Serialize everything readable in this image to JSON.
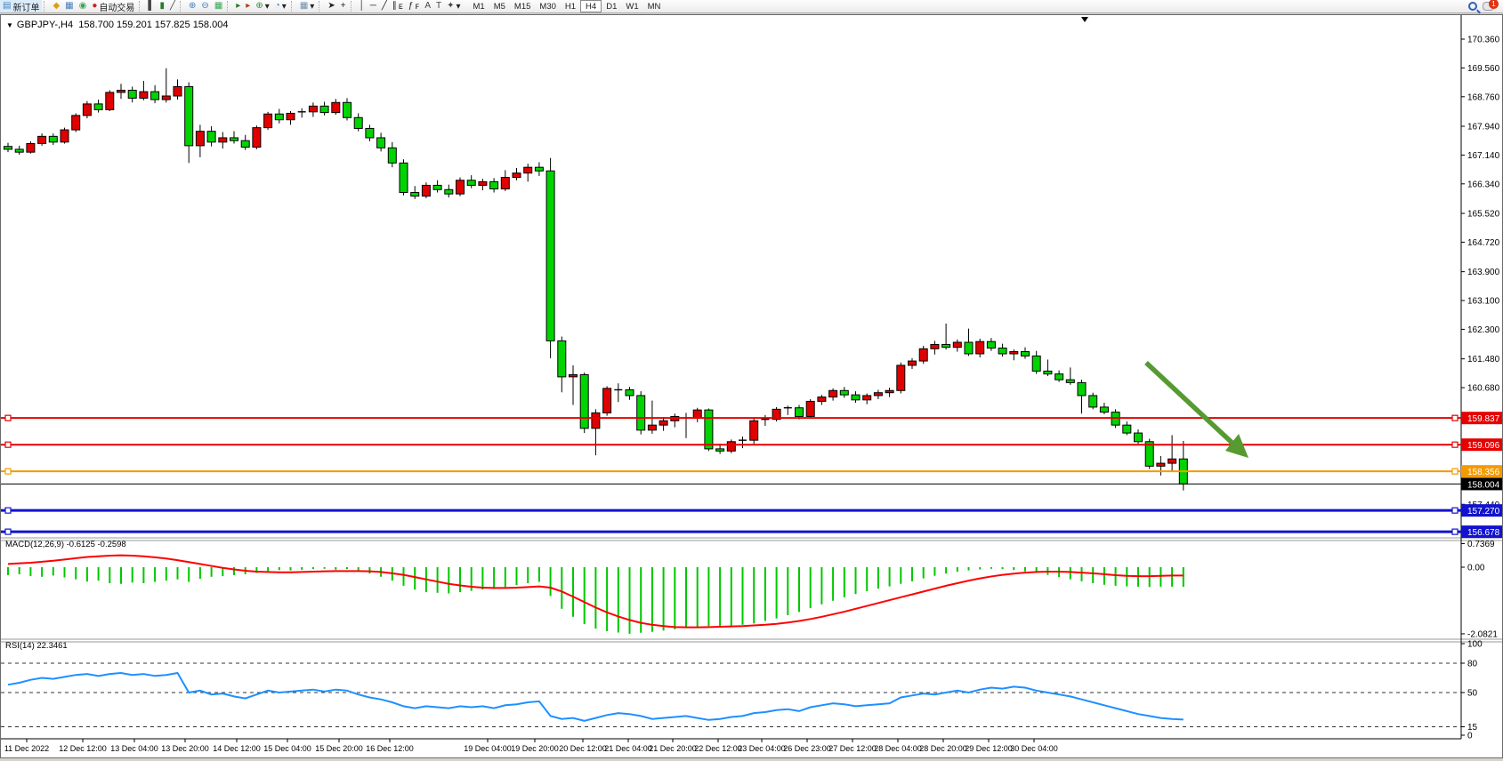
{
  "toolbar": {
    "buttons": [
      {
        "name": "new-order-button",
        "glyph": "▤",
        "color": "#3f7fbf",
        "label": "新订单"
      },
      {
        "name": "separator",
        "glyph": "",
        "color": "",
        "label": ""
      },
      {
        "name": "gold-chart-button",
        "glyph": "◆",
        "color": "#d8a018",
        "label": ""
      },
      {
        "name": "market-window-button",
        "glyph": "▦",
        "color": "#4a7ebb",
        "label": ""
      },
      {
        "name": "signal-button",
        "glyph": "◉",
        "color": "#3aa655",
        "label": ""
      },
      {
        "name": "autotrading-button",
        "glyph": "●",
        "color": "#d42020",
        "label": "自动交易"
      },
      {
        "name": "separator",
        "glyph": "",
        "color": "",
        "label": ""
      },
      {
        "name": "bar-chart-button",
        "glyph": "▌",
        "color": "#444444",
        "label": ""
      },
      {
        "name": "candlestick-chart-button",
        "glyph": "▮",
        "color": "#2a7a2a",
        "label": ""
      },
      {
        "name": "line-chart-button",
        "glyph": "╱",
        "color": "#444444",
        "label": ""
      },
      {
        "name": "separator",
        "glyph": "",
        "color": "",
        "label": ""
      },
      {
        "name": "zoom-in-button",
        "glyph": "⊕",
        "color": "#3f7fbf",
        "label": ""
      },
      {
        "name": "zoom-out-button",
        "glyph": "⊖",
        "color": "#3f7fbf",
        "label": ""
      },
      {
        "name": "tile-windows-button",
        "glyph": "▦",
        "color": "#3aa655",
        "label": ""
      },
      {
        "name": "separator",
        "glyph": "",
        "color": "",
        "label": ""
      },
      {
        "name": "auto-scroll-button",
        "glyph": "▸",
        "color": "#2a7a2a",
        "label": ""
      },
      {
        "name": "chart-shift-button",
        "glyph": "▸",
        "color": "#b04020",
        "label": ""
      },
      {
        "name": "add-indicator-button",
        "glyph": "⊕",
        "color": "#2a9a2a",
        "label": "▾"
      },
      {
        "name": "period-button",
        "glyph": "◔",
        "color": "#3f7fbf",
        "label": "▾"
      },
      {
        "name": "separator",
        "glyph": "",
        "color": "",
        "label": ""
      },
      {
        "name": "template-button",
        "glyph": "▦",
        "color": "#6f8faf",
        "label": "▾"
      },
      {
        "name": "separator",
        "glyph": "",
        "color": "",
        "label": ""
      },
      {
        "name": "cursor-button",
        "glyph": "➤",
        "color": "#222222",
        "label": ""
      },
      {
        "name": "crosshair-button",
        "glyph": "+",
        "color": "#222222",
        "label": ""
      },
      {
        "name": "separator",
        "glyph": "",
        "color": "",
        "label": ""
      },
      {
        "name": "vertical-line-button",
        "glyph": "│",
        "color": "#222222",
        "label": ""
      },
      {
        "name": "horizontal-line-button",
        "glyph": "─",
        "color": "#222222",
        "label": ""
      },
      {
        "name": "trendline-button",
        "glyph": "╱",
        "color": "#222222",
        "label": ""
      },
      {
        "name": "channel-button",
        "glyph": "∥",
        "color": "#222222",
        "label": "ᴇ"
      },
      {
        "name": "fibonacci-button",
        "glyph": "ƒ",
        "color": "#222222",
        "label": "ꜰ"
      },
      {
        "name": "text-button",
        "glyph": "A",
        "color": "#444444",
        "label": ""
      },
      {
        "name": "text-label-button",
        "glyph": "T",
        "color": "#444444",
        "label": ""
      },
      {
        "name": "arrows-button",
        "glyph": "✦",
        "color": "#444444",
        "label": "▾"
      }
    ],
    "timeframes": [
      "M1",
      "M5",
      "M15",
      "M30",
      "H1",
      "H4",
      "D1",
      "W1",
      "MN"
    ],
    "active_timeframe": "H4",
    "notification_badge": "1"
  },
  "chart": {
    "collapse_icon": "▼",
    "title": "GBPJPY-,H4",
    "ohlc_text": "158.700 159.201 157.825 158.004"
  },
  "chart_data": {
    "type": "candlestick",
    "symbol": "GBPJPY-",
    "timeframe": "H4",
    "last_bar": {
      "open": 158.7,
      "high": 159.201,
      "low": 157.825,
      "close": 158.004
    },
    "price_axis_ticks": [
      "170.360",
      "169.560",
      "168.760",
      "167.940",
      "167.140",
      "166.340",
      "165.520",
      "164.720",
      "163.900",
      "163.100",
      "162.300",
      "161.480",
      "160.680",
      "157.440"
    ],
    "horizontal_lines": [
      {
        "price": 159.837,
        "label": "159.837",
        "color": "#e60000",
        "width": 2
      },
      {
        "price": 159.096,
        "label": "159.096",
        "color": "#e60000",
        "width": 2
      },
      {
        "price": 158.356,
        "label": "158.356",
        "color": "#f59a00",
        "width": 2
      },
      {
        "price": 157.27,
        "label": "157.270",
        "color": "#1212cf",
        "width": 3
      },
      {
        "price": 156.678,
        "label": "156.678",
        "color": "#1212cf",
        "width": 3
      }
    ],
    "current_price": {
      "price": 158.004,
      "label": "158.004",
      "color": "#000000"
    },
    "x_labels": [
      "11 Dec 2022",
      "12 Dec 12:00",
      "13 Dec 04:00",
      "13 Dec 20:00",
      "14 Dec 12:00",
      "15 Dec 04:00",
      "15 Dec 20:00",
      "16 Dec 12:00",
      "19 Dec 04:00",
      "19 Dec 20:00",
      "20 Dec 12:00",
      "21 Dec 04:00",
      "21 Dec 20:00",
      "22 Dec 12:00",
      "23 Dec 04:00",
      "26 Dec 23:00",
      "27 Dec 12:00",
      "28 Dec 04:00",
      "28 Dec 20:00",
      "29 Dec 12:00",
      "30 Dec 04:00"
    ],
    "candles": [
      [
        167.38,
        167.48,
        167.22,
        167.3
      ],
      [
        167.3,
        167.4,
        167.15,
        167.22
      ],
      [
        167.22,
        167.52,
        167.18,
        167.46
      ],
      [
        167.46,
        167.74,
        167.4,
        167.66
      ],
      [
        167.66,
        167.74,
        167.42,
        167.5
      ],
      [
        167.5,
        167.9,
        167.46,
        167.84
      ],
      [
        167.84,
        168.3,
        167.78,
        168.24
      ],
      [
        168.24,
        168.64,
        168.16,
        168.56
      ],
      [
        168.56,
        168.68,
        168.32,
        168.4
      ],
      [
        168.4,
        168.94,
        168.36,
        168.88
      ],
      [
        168.88,
        169.12,
        168.7,
        168.94
      ],
      [
        168.94,
        169.04,
        168.6,
        168.72
      ],
      [
        168.72,
        169.2,
        168.66,
        168.9
      ],
      [
        168.9,
        169.08,
        168.58,
        168.68
      ],
      [
        168.68,
        169.55,
        168.6,
        168.78
      ],
      [
        168.78,
        169.24,
        168.68,
        169.04
      ],
      [
        169.04,
        169.16,
        166.92,
        167.4
      ],
      [
        167.4,
        167.98,
        167.08,
        167.8
      ],
      [
        167.8,
        167.94,
        167.38,
        167.5
      ],
      [
        167.5,
        167.78,
        167.32,
        167.62
      ],
      [
        167.62,
        167.8,
        167.46,
        167.54
      ],
      [
        167.54,
        167.7,
        167.28,
        167.36
      ],
      [
        167.36,
        167.96,
        167.3,
        167.9
      ],
      [
        167.9,
        168.34,
        167.84,
        168.28
      ],
      [
        168.28,
        168.42,
        168.02,
        168.12
      ],
      [
        168.12,
        168.36,
        167.98,
        168.3
      ],
      [
        168.3,
        168.44,
        168.18,
        168.34
      ],
      [
        168.34,
        168.6,
        168.2,
        168.5
      ],
      [
        168.5,
        168.62,
        168.24,
        168.32
      ],
      [
        168.32,
        168.7,
        168.26,
        168.6
      ],
      [
        168.6,
        168.72,
        168.1,
        168.18
      ],
      [
        168.18,
        168.3,
        167.8,
        167.88
      ],
      [
        167.88,
        167.98,
        167.52,
        167.62
      ],
      [
        167.62,
        167.76,
        167.24,
        167.34
      ],
      [
        167.34,
        167.5,
        166.8,
        166.92
      ],
      [
        166.92,
        167.02,
        166.02,
        166.1
      ],
      [
        166.1,
        166.28,
        165.92,
        166.0
      ],
      [
        166.0,
        166.38,
        165.94,
        166.3
      ],
      [
        166.3,
        166.44,
        166.1,
        166.18
      ],
      [
        166.18,
        166.32,
        165.96,
        166.06
      ],
      [
        166.06,
        166.52,
        166.0,
        166.44
      ],
      [
        166.44,
        166.58,
        166.22,
        166.3
      ],
      [
        166.3,
        166.48,
        166.16,
        166.4
      ],
      [
        166.4,
        166.5,
        166.1,
        166.2
      ],
      [
        166.2,
        166.72,
        166.14,
        166.52
      ],
      [
        166.52,
        166.78,
        166.44,
        166.64
      ],
      [
        166.64,
        166.9,
        166.4,
        166.8
      ],
      [
        166.8,
        166.94,
        166.56,
        166.7
      ],
      [
        166.7,
        167.06,
        161.5,
        161.98
      ],
      [
        161.98,
        162.1,
        160.55,
        160.98
      ],
      [
        160.98,
        161.3,
        160.2,
        161.04
      ],
      [
        161.04,
        161.1,
        159.42,
        159.55
      ],
      [
        159.55,
        160.08,
        158.8,
        159.98
      ],
      [
        159.98,
        160.72,
        159.9,
        160.66
      ],
      [
        160.66,
        160.8,
        160.28,
        160.62
      ],
      [
        160.62,
        160.7,
        160.34,
        160.46
      ],
      [
        160.46,
        160.58,
        159.38,
        159.5
      ],
      [
        159.5,
        160.32,
        159.4,
        159.64
      ],
      [
        159.64,
        159.86,
        159.48,
        159.76
      ],
      [
        159.76,
        159.96,
        159.58,
        159.88
      ],
      [
        159.88,
        159.98,
        159.28,
        159.84
      ],
      [
        159.84,
        160.12,
        159.72,
        160.06
      ],
      [
        160.06,
        160.1,
        158.92,
        158.98
      ],
      [
        158.98,
        159.12,
        158.84,
        158.92
      ],
      [
        158.92,
        159.24,
        158.86,
        159.18
      ],
      [
        159.18,
        159.32,
        159.0,
        159.22
      ],
      [
        159.22,
        159.82,
        159.12,
        159.76
      ],
      [
        159.76,
        159.92,
        159.62,
        159.8
      ],
      [
        159.8,
        160.14,
        159.74,
        160.08
      ],
      [
        160.08,
        160.18,
        159.92,
        160.12
      ],
      [
        160.12,
        160.2,
        159.8,
        159.88
      ],
      [
        159.88,
        160.36,
        159.82,
        160.3
      ],
      [
        160.3,
        160.48,
        160.2,
        160.42
      ],
      [
        160.42,
        160.66,
        160.32,
        160.6
      ],
      [
        160.6,
        160.7,
        160.4,
        160.48
      ],
      [
        160.48,
        160.58,
        160.26,
        160.34
      ],
      [
        160.34,
        160.52,
        160.22,
        160.46
      ],
      [
        160.46,
        160.62,
        160.36,
        160.54
      ],
      [
        160.54,
        160.68,
        160.42,
        160.6
      ],
      [
        160.6,
        161.38,
        160.52,
        161.3
      ],
      [
        161.3,
        161.5,
        161.2,
        161.42
      ],
      [
        161.42,
        161.84,
        161.34,
        161.76
      ],
      [
        161.76,
        161.98,
        161.6,
        161.88
      ],
      [
        161.88,
        162.46,
        161.74,
        161.8
      ],
      [
        161.8,
        162.02,
        161.68,
        161.94
      ],
      [
        161.94,
        162.32,
        161.56,
        161.62
      ],
      [
        161.62,
        162.04,
        161.52,
        161.96
      ],
      [
        161.96,
        162.06,
        161.7,
        161.78
      ],
      [
        161.78,
        161.9,
        161.54,
        161.62
      ],
      [
        161.62,
        161.74,
        161.44,
        161.68
      ],
      [
        161.68,
        161.8,
        161.48,
        161.56
      ],
      [
        161.56,
        161.7,
        161.06,
        161.14
      ],
      [
        161.14,
        161.46,
        161.0,
        161.06
      ],
      [
        161.06,
        161.16,
        160.84,
        160.9
      ],
      [
        160.9,
        161.24,
        160.76,
        160.82
      ],
      [
        160.82,
        160.9,
        159.96,
        160.46
      ],
      [
        160.46,
        160.54,
        160.08,
        160.14
      ],
      [
        160.14,
        160.26,
        159.94,
        160.0
      ],
      [
        160.0,
        160.08,
        159.56,
        159.64
      ],
      [
        159.64,
        159.74,
        159.36,
        159.42
      ],
      [
        159.42,
        159.52,
        159.12,
        159.18
      ],
      [
        159.18,
        159.26,
        158.42,
        158.5
      ],
      [
        158.5,
        158.78,
        158.24,
        158.58
      ],
      [
        158.58,
        159.36,
        158.34,
        158.7
      ],
      [
        158.7,
        159.201,
        157.825,
        158.004
      ]
    ],
    "macd": {
      "label": "MACD(12,26,9) -0.6125 -0.2598",
      "params": "12,26,9",
      "value_main": -0.6125,
      "value_signal": -0.2598,
      "scale_labels": [
        "0.7369",
        "0.00",
        "-2.0821"
      ],
      "histogram": [
        -0.25,
        -0.22,
        -0.28,
        -0.3,
        -0.26,
        -0.32,
        -0.38,
        -0.45,
        -0.42,
        -0.5,
        -0.52,
        -0.48,
        -0.5,
        -0.46,
        -0.42,
        -0.38,
        -0.46,
        -0.36,
        -0.3,
        -0.28,
        -0.25,
        -0.22,
        -0.18,
        -0.12,
        -0.09,
        -0.1,
        -0.08,
        -0.06,
        -0.05,
        -0.08,
        -0.06,
        -0.12,
        -0.2,
        -0.3,
        -0.42,
        -0.58,
        -0.7,
        -0.78,
        -0.8,
        -0.82,
        -0.78,
        -0.74,
        -0.7,
        -0.68,
        -0.62,
        -0.56,
        -0.5,
        -0.46,
        -0.9,
        -1.3,
        -1.55,
        -1.78,
        -1.92,
        -2.0,
        -2.04,
        -2.08,
        -2.05,
        -2.02,
        -1.98,
        -1.94,
        -1.9,
        -1.86,
        -1.84,
        -1.85,
        -1.83,
        -1.8,
        -1.76,
        -1.68,
        -1.6,
        -1.5,
        -1.4,
        -1.28,
        -1.16,
        -1.05,
        -0.94,
        -0.84,
        -0.75,
        -0.67,
        -0.6,
        -0.52,
        -0.44,
        -0.35,
        -0.27,
        -0.2,
        -0.14,
        -0.1,
        -0.07,
        -0.05,
        -0.06,
        -0.09,
        -0.13,
        -0.18,
        -0.24,
        -0.31,
        -0.38,
        -0.44,
        -0.5,
        -0.55,
        -0.58,
        -0.6,
        -0.61,
        -0.62,
        -0.61,
        -0.61,
        -0.6125
      ],
      "signal": [
        0.1,
        0.12,
        0.14,
        0.17,
        0.2,
        0.24,
        0.28,
        0.32,
        0.34,
        0.36,
        0.37,
        0.36,
        0.34,
        0.31,
        0.27,
        0.22,
        0.16,
        0.1,
        0.04,
        -0.02,
        -0.07,
        -0.11,
        -0.14,
        -0.15,
        -0.16,
        -0.16,
        -0.15,
        -0.14,
        -0.13,
        -0.12,
        -0.12,
        -0.12,
        -0.13,
        -0.15,
        -0.19,
        -0.24,
        -0.31,
        -0.38,
        -0.45,
        -0.52,
        -0.57,
        -0.61,
        -0.64,
        -0.65,
        -0.65,
        -0.64,
        -0.62,
        -0.6,
        -0.64,
        -0.76,
        -0.92,
        -1.09,
        -1.26,
        -1.41,
        -1.54,
        -1.65,
        -1.74,
        -1.8,
        -1.84,
        -1.87,
        -1.88,
        -1.88,
        -1.87,
        -1.86,
        -1.85,
        -1.84,
        -1.82,
        -1.8,
        -1.77,
        -1.73,
        -1.68,
        -1.62,
        -1.55,
        -1.47,
        -1.39,
        -1.3,
        -1.21,
        -1.12,
        -1.03,
        -0.94,
        -0.85,
        -0.76,
        -0.67,
        -0.58,
        -0.5,
        -0.42,
        -0.35,
        -0.29,
        -0.24,
        -0.2,
        -0.17,
        -0.15,
        -0.14,
        -0.14,
        -0.15,
        -0.17,
        -0.19,
        -0.22,
        -0.25,
        -0.27,
        -0.28,
        -0.28,
        -0.27,
        -0.26,
        -0.2598
      ]
    },
    "rsi": {
      "label": "RSI(14) 22.3461",
      "period": 14,
      "value": 22.3461,
      "scale_labels": [
        "100",
        "80",
        "50",
        "15",
        "0"
      ],
      "dashed_levels": [
        80,
        50,
        15
      ],
      "values": [
        58,
        60,
        63,
        65,
        64,
        66,
        68,
        69,
        67,
        69,
        70,
        68,
        69,
        67,
        68,
        70,
        50,
        52,
        48,
        49,
        46,
        44,
        48,
        52,
        50,
        51,
        52,
        53,
        51,
        53,
        52,
        48,
        45,
        43,
        40,
        36,
        34,
        36,
        35,
        34,
        36,
        35,
        36,
        34,
        37,
        38,
        40,
        41,
        26,
        23,
        24,
        21,
        24,
        27,
        29,
        28,
        26,
        23,
        24,
        25,
        26,
        24,
        22,
        23,
        25,
        26,
        29,
        30,
        32,
        33,
        31,
        35,
        37,
        39,
        38,
        36,
        37,
        38,
        39,
        45,
        47,
        49,
        48,
        50,
        52,
        50,
        53,
        55,
        54,
        56,
        55,
        52,
        50,
        48,
        46,
        43,
        40,
        37,
        34,
        31,
        28,
        26,
        24,
        23,
        22.35
      ]
    },
    "annotation_arrow": {
      "from": [
        1287,
        391
      ],
      "to": [
        1400,
        496
      ],
      "color": "#569a31"
    },
    "colors": {
      "bull_body": "#e00000",
      "bear_body": "#00d400",
      "wick": "#000000",
      "doji": "#000000",
      "macd_histogram": "#00c800",
      "macd_signal": "#ff0000",
      "rsi_line": "#1e90ff",
      "background": "#ffffff",
      "axis_text": "#000000"
    }
  }
}
